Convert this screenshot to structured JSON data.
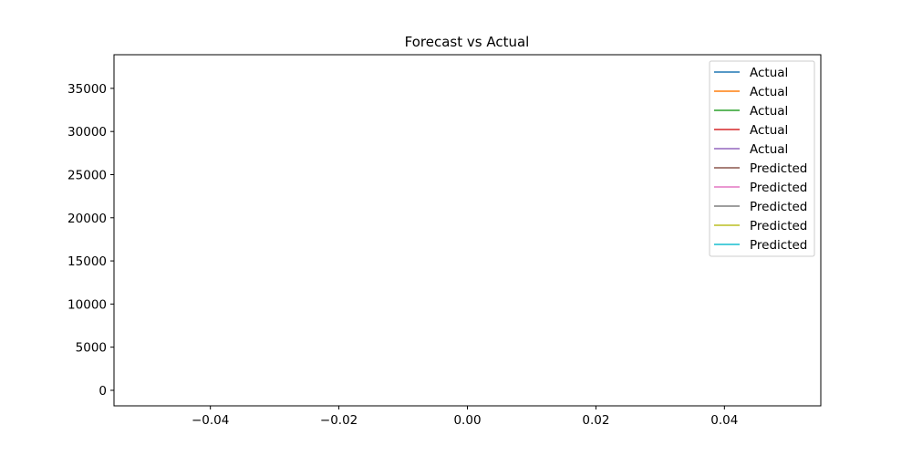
{
  "chart_data": {
    "type": "line",
    "title": "Forecast vs Actual",
    "xlabel": "",
    "ylabel": "",
    "xlim": [
      -0.055,
      0.055
    ],
    "ylim": [
      -1800,
      38900
    ],
    "xticks": [
      -0.04,
      -0.02,
      0.0,
      0.02,
      0.04
    ],
    "xtick_labels": [
      "−0.04",
      "−0.02",
      "0.00",
      "0.02",
      "0.04"
    ],
    "yticks": [
      0,
      5000,
      10000,
      15000,
      20000,
      25000,
      30000,
      35000
    ],
    "ytick_labels": [
      "0",
      "5000",
      "10000",
      "15000",
      "20000",
      "25000",
      "30000",
      "35000"
    ],
    "grid": false,
    "legend_position": "top-right",
    "series": [
      {
        "name": "Actual",
        "color": "#1f77b4",
        "x": [],
        "y": []
      },
      {
        "name": "Actual",
        "color": "#ff7f0e",
        "x": [],
        "y": []
      },
      {
        "name": "Actual",
        "color": "#2ca02c",
        "x": [],
        "y": []
      },
      {
        "name": "Actual",
        "color": "#d62728",
        "x": [],
        "y": []
      },
      {
        "name": "Actual",
        "color": "#9467bd",
        "x": [],
        "y": []
      },
      {
        "name": "Predicted",
        "color": "#8c564b",
        "x": [],
        "y": []
      },
      {
        "name": "Predicted",
        "color": "#e377c2",
        "x": [],
        "y": []
      },
      {
        "name": "Predicted",
        "color": "#7f7f7f",
        "x": [],
        "y": []
      },
      {
        "name": "Predicted",
        "color": "#bcbd22",
        "x": [],
        "y": []
      },
      {
        "name": "Predicted",
        "color": "#17becf",
        "x": [],
        "y": []
      }
    ]
  }
}
